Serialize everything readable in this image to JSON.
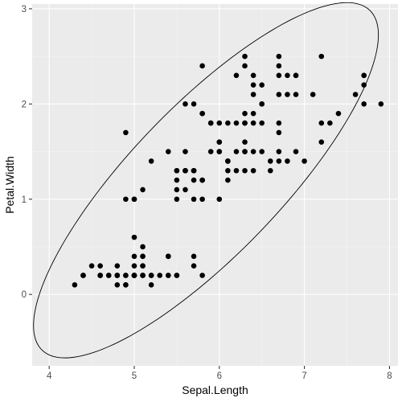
{
  "chart_data": {
    "type": "scatter",
    "title": "",
    "xlabel": "Sepal.Length",
    "ylabel": "Petal.Width",
    "xlim": [
      3.8,
      8.1
    ],
    "ylim": [
      -0.75,
      3.05
    ],
    "x_ticks": [
      4,
      5,
      6,
      7,
      8
    ],
    "y_ticks": [
      0,
      1,
      2,
      3
    ],
    "grid": true,
    "legend": "none",
    "point_color": "#000000",
    "panel_color": "#ebebeb",
    "ellipse": {
      "type": "normal-confidence-ellipse",
      "center": [
        5.843,
        1.199
      ],
      "cov": [
        [
          0.6857,
          0.5163
        ],
        [
          0.5163,
          0.581
        ]
      ],
      "level": 0.95
    },
    "points": [
      [
        5.1,
        0.2
      ],
      [
        4.9,
        0.2
      ],
      [
        4.7,
        0.2
      ],
      [
        4.6,
        0.2
      ],
      [
        5.0,
        0.2
      ],
      [
        5.4,
        0.4
      ],
      [
        4.6,
        0.3
      ],
      [
        5.0,
        0.2
      ],
      [
        4.4,
        0.2
      ],
      [
        4.9,
        0.1
      ],
      [
        5.4,
        0.2
      ],
      [
        4.8,
        0.2
      ],
      [
        4.8,
        0.1
      ],
      [
        4.3,
        0.1
      ],
      [
        5.8,
        0.2
      ],
      [
        5.7,
        0.4
      ],
      [
        5.4,
        0.4
      ],
      [
        5.1,
        0.3
      ],
      [
        5.7,
        0.3
      ],
      [
        5.1,
        0.3
      ],
      [
        5.4,
        0.2
      ],
      [
        5.1,
        0.4
      ],
      [
        4.6,
        0.2
      ],
      [
        5.1,
        0.5
      ],
      [
        4.8,
        0.2
      ],
      [
        5.0,
        0.2
      ],
      [
        5.0,
        0.4
      ],
      [
        5.2,
        0.2
      ],
      [
        5.2,
        0.2
      ],
      [
        4.7,
        0.2
      ],
      [
        4.8,
        0.2
      ],
      [
        5.4,
        0.4
      ],
      [
        5.2,
        0.1
      ],
      [
        5.5,
        0.2
      ],
      [
        4.9,
        0.2
      ],
      [
        5.0,
        0.2
      ],
      [
        5.5,
        0.2
      ],
      [
        4.9,
        0.1
      ],
      [
        4.4,
        0.2
      ],
      [
        5.1,
        0.2
      ],
      [
        5.0,
        0.3
      ],
      [
        4.5,
        0.3
      ],
      [
        4.4,
        0.2
      ],
      [
        5.0,
        0.6
      ],
      [
        5.1,
        0.4
      ],
      [
        4.8,
        0.3
      ],
      [
        5.1,
        0.2
      ],
      [
        4.6,
        0.2
      ],
      [
        5.3,
        0.2
      ],
      [
        5.0,
        0.2
      ],
      [
        7.0,
        1.4
      ],
      [
        6.4,
        1.5
      ],
      [
        6.9,
        1.5
      ],
      [
        5.5,
        1.3
      ],
      [
        6.5,
        1.5
      ],
      [
        5.7,
        1.3
      ],
      [
        6.3,
        1.6
      ],
      [
        4.9,
        1.0
      ],
      [
        6.6,
        1.3
      ],
      [
        5.2,
        1.4
      ],
      [
        5.0,
        1.0
      ],
      [
        5.9,
        1.5
      ],
      [
        6.0,
        1.0
      ],
      [
        6.1,
        1.4
      ],
      [
        5.6,
        1.3
      ],
      [
        6.7,
        1.4
      ],
      [
        5.6,
        1.5
      ],
      [
        5.8,
        1.0
      ],
      [
        6.2,
        1.5
      ],
      [
        5.6,
        1.1
      ],
      [
        5.9,
        1.8
      ],
      [
        6.1,
        1.3
      ],
      [
        6.3,
        1.5
      ],
      [
        6.1,
        1.2
      ],
      [
        6.4,
        1.3
      ],
      [
        6.6,
        1.4
      ],
      [
        6.8,
        1.4
      ],
      [
        6.7,
        1.7
      ],
      [
        6.0,
        1.5
      ],
      [
        5.7,
        1.0
      ],
      [
        5.5,
        1.1
      ],
      [
        5.5,
        1.0
      ],
      [
        5.8,
        1.2
      ],
      [
        6.0,
        1.6
      ],
      [
        5.4,
        1.5
      ],
      [
        6.0,
        1.6
      ],
      [
        6.7,
        1.5
      ],
      [
        6.3,
        1.3
      ],
      [
        5.6,
        1.3
      ],
      [
        5.5,
        1.3
      ],
      [
        5.5,
        1.2
      ],
      [
        6.1,
        1.4
      ],
      [
        5.8,
        1.2
      ],
      [
        5.0,
        1.0
      ],
      [
        5.6,
        1.3
      ],
      [
        5.7,
        1.2
      ],
      [
        5.7,
        1.3
      ],
      [
        6.2,
        1.3
      ],
      [
        5.1,
        1.1
      ],
      [
        5.7,
        1.3
      ],
      [
        6.3,
        2.5
      ],
      [
        5.8,
        1.9
      ],
      [
        7.1,
        2.1
      ],
      [
        6.3,
        1.8
      ],
      [
        6.5,
        2.2
      ],
      [
        7.6,
        2.1
      ],
      [
        4.9,
        1.7
      ],
      [
        7.3,
        1.8
      ],
      [
        6.7,
        1.8
      ],
      [
        7.2,
        2.5
      ],
      [
        6.5,
        2.0
      ],
      [
        6.4,
        1.9
      ],
      [
        6.8,
        2.1
      ],
      [
        5.7,
        2.0
      ],
      [
        5.8,
        2.4
      ],
      [
        6.4,
        2.3
      ],
      [
        6.5,
        1.8
      ],
      [
        7.7,
        2.2
      ],
      [
        7.7,
        2.3
      ],
      [
        6.0,
        1.5
      ],
      [
        6.9,
        2.3
      ],
      [
        5.6,
        2.0
      ],
      [
        7.7,
        2.0
      ],
      [
        6.3,
        1.8
      ],
      [
        6.7,
        2.1
      ],
      [
        7.2,
        1.8
      ],
      [
        6.2,
        1.8
      ],
      [
        6.1,
        1.8
      ],
      [
        6.4,
        2.1
      ],
      [
        7.2,
        1.6
      ],
      [
        7.4,
        1.9
      ],
      [
        7.9,
        2.0
      ],
      [
        6.4,
        2.2
      ],
      [
        6.3,
        1.5
      ],
      [
        6.1,
        1.4
      ],
      [
        7.7,
        2.3
      ],
      [
        6.3,
        2.4
      ],
      [
        6.4,
        1.8
      ],
      [
        6.0,
        1.8
      ],
      [
        6.9,
        2.1
      ],
      [
        6.7,
        2.4
      ],
      [
        6.9,
        2.3
      ],
      [
        5.8,
        1.9
      ],
      [
        6.8,
        2.3
      ],
      [
        6.7,
        2.5
      ],
      [
        6.7,
        2.3
      ],
      [
        6.3,
        1.9
      ],
      [
        6.5,
        2.0
      ],
      [
        6.2,
        2.3
      ],
      [
        5.9,
        1.8
      ]
    ]
  }
}
